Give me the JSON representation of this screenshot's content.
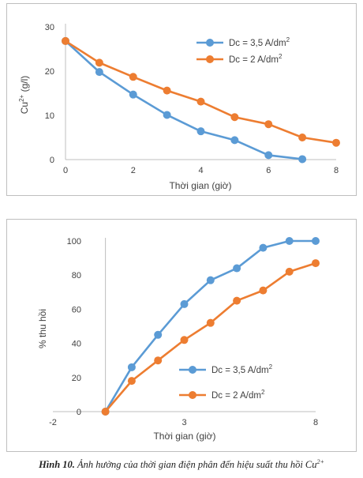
{
  "chart_data": [
    {
      "type": "line",
      "title": "",
      "xlabel": "Thời gian (giờ)",
      "ylabel": "Cu 2+ (g/l)",
      "ylabel_parts": {
        "pre": "Cu",
        "sup": "2+",
        "post": " (g/l)"
      },
      "xlim": [
        0,
        8
      ],
      "ylim": [
        0,
        30
      ],
      "xticks": [
        "0",
        "2",
        "4",
        "6",
        "8"
      ],
      "xtick_values": [
        0,
        2,
        4,
        6,
        8
      ],
      "yticks": [
        "0",
        "10",
        "20",
        "30"
      ],
      "ytick_values": [
        0,
        10,
        20,
        30
      ],
      "grid": false,
      "legend": "top-right",
      "series": [
        {
          "name": "Dc = 3,5 A/dm²",
          "name_parts": {
            "pre": "Dc = 3,5 A/dm",
            "sup": "2"
          },
          "color": "#5b9bd5",
          "x": [
            0,
            1,
            2,
            3,
            4,
            5,
            6,
            7
          ],
          "y": [
            26.8,
            19.8,
            14.7,
            10.1,
            6.4,
            4.4,
            1.0,
            0.1
          ]
        },
        {
          "name": "Dc = 2 A/dm²",
          "name_parts": {
            "pre": "Dc = 2 A/dm",
            "sup": "2"
          },
          "color": "#ed7d31",
          "x": [
            0,
            1,
            2,
            3,
            4,
            5,
            6,
            7,
            8
          ],
          "y": [
            26.8,
            21.9,
            18.7,
            15.6,
            13.1,
            9.6,
            8.0,
            5.0,
            3.8
          ]
        }
      ]
    },
    {
      "type": "line",
      "title": "",
      "xlabel": "Thời gian (giờ)",
      "ylabel": "% thu hồi",
      "xlim": [
        -2,
        8
      ],
      "ylim": [
        0,
        100
      ],
      "xticks": [
        "-2",
        "3",
        "8"
      ],
      "xtick_values": [
        -2,
        3,
        8
      ],
      "yticks": [
        "0",
        "20",
        "40",
        "60",
        "80",
        "100"
      ],
      "ytick_values": [
        0,
        20,
        40,
        60,
        80,
        100
      ],
      "grid": false,
      "legend": "bottom-right",
      "series": [
        {
          "name": "Dc = 3,5 A/dm²",
          "name_parts": {
            "pre": "Dc = 3,5 A/dm",
            "sup": "2"
          },
          "color": "#5b9bd5",
          "x": [
            0,
            1,
            2,
            3,
            4,
            5,
            6,
            7,
            8
          ],
          "y": [
            0,
            26,
            45,
            63,
            77,
            84,
            96,
            100,
            100
          ]
        },
        {
          "name": "Dc = 2 A/dm²",
          "name_parts": {
            "pre": "Dc = 2 A/dm",
            "sup": "2"
          },
          "color": "#ed7d31",
          "x": [
            0,
            1,
            2,
            3,
            4,
            5,
            6,
            7,
            8
          ],
          "y": [
            0,
            18,
            30,
            42,
            52,
            65,
            71,
            82,
            87
          ]
        }
      ]
    }
  ],
  "caption": {
    "label": "Hình 10.",
    "text": " Ảnh hưởng của thời gian điện phân đến hiệu suất thu hồi Cu",
    "sup": "2+"
  }
}
